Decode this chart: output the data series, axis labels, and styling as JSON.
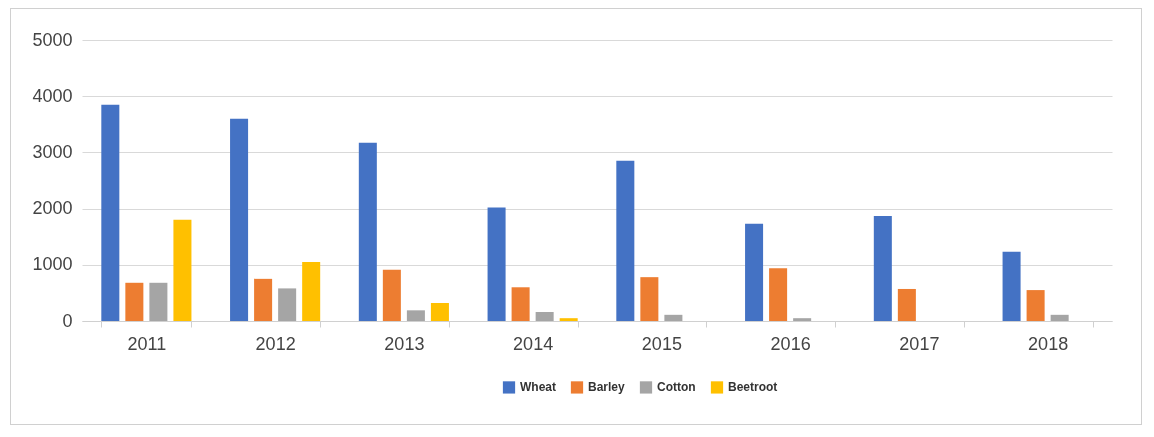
{
  "chart_data": {
    "type": "bar",
    "categories": [
      "2011",
      "2012",
      "2013",
      "2014",
      "2015",
      "2016",
      "2017",
      "2018"
    ],
    "series": [
      {
        "name": "Wheat",
        "color": "#4472c4",
        "values": [
          3850,
          3600,
          3170,
          2020,
          2850,
          1730,
          1870,
          1230
        ]
      },
      {
        "name": "Barley",
        "color": "#ed7d31",
        "values": [
          680,
          750,
          910,
          600,
          780,
          940,
          570,
          550
        ]
      },
      {
        "name": "Cotton",
        "color": "#a5a5a5",
        "values": [
          680,
          580,
          190,
          160,
          110,
          50,
          null,
          110
        ]
      },
      {
        "name": "Beetroot",
        "color": "#ffc000",
        "values": [
          1800,
          1050,
          320,
          50,
          null,
          null,
          null,
          null
        ]
      }
    ],
    "ylim": [
      0,
      5000
    ],
    "yticks": [
      0,
      1000,
      2000,
      3000,
      4000,
      5000
    ],
    "grid": "y",
    "legend": "bottom"
  }
}
